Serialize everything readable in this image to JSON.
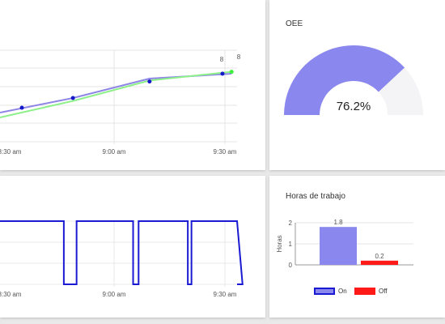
{
  "line_card": {
    "x_ticks": [
      "8:30 am",
      "9:00 am",
      "9:30 am"
    ],
    "point_labels": [
      "8",
      "8"
    ],
    "colors": {
      "series_a": "#8e86e6",
      "series_b": "#8ef08a",
      "point": "#1418c8"
    }
  },
  "oee_card": {
    "title": "OEE",
    "value_text": "76.2%",
    "value": 76.2,
    "colors": {
      "fill": "#8a87ee",
      "track": "#f4f4f6"
    }
  },
  "state_card": {
    "x_ticks": [
      "8:30 am",
      "9:00 am",
      "9:30 am"
    ],
    "color": "#1a1ad2"
  },
  "hours_card": {
    "title": "Horas de trabajo",
    "y_label": "Horas",
    "y_ticks": [
      "0",
      "1",
      "2"
    ],
    "legend_on": "On",
    "legend_off": "Off"
  },
  "chart_data": [
    {
      "type": "line",
      "x_ticks": [
        "8:30 am",
        "9:00 am",
        "9:30 am"
      ],
      "series": [
        {
          "color": "#8e86e6",
          "x": [
            8.25,
            8.65,
            9.07,
            9.52
          ],
          "y": [
            7.6,
            7.75,
            7.95,
            8.0
          ]
        },
        {
          "color": "#8ef08a",
          "x": [
            8.25,
            8.65,
            9.07,
            9.52
          ],
          "y": [
            7.55,
            7.72,
            7.93,
            8.02
          ]
        }
      ],
      "points": [
        {
          "x": 8.37,
          "y": 7.65
        },
        {
          "x": 8.65,
          "y": 7.75
        },
        {
          "x": 9.07,
          "y": 7.92
        },
        {
          "x": 9.47,
          "y": 8.0
        }
      ],
      "point_labels": [
        "8",
        "8"
      ]
    },
    {
      "type": "line",
      "x_ticks": [
        "8:30 am",
        "9:00 am",
        "9:30 am"
      ],
      "steps": [
        {
          "x0": 8.25,
          "x1": 8.6,
          "state": 1
        },
        {
          "x0": 8.6,
          "x1": 8.67,
          "state": 0
        },
        {
          "x0": 8.67,
          "x1": 8.98,
          "state": 1
        },
        {
          "x0": 8.98,
          "x1": 9.01,
          "state": 0
        },
        {
          "x0": 9.01,
          "x1": 9.28,
          "state": 1
        },
        {
          "x0": 9.28,
          "x1": 9.3,
          "state": 0
        },
        {
          "x0": 9.3,
          "x1": 9.58,
          "state": 1
        },
        {
          "x0": 9.58,
          "x1": 9.6,
          "state": 0
        }
      ]
    },
    {
      "type": "bar",
      "title": "Horas de trabajo",
      "ylabel": "Horas",
      "ylim": [
        0,
        2
      ],
      "categories": [
        "On",
        "Off"
      ],
      "values": [
        1.8,
        0.2
      ],
      "data_labels": [
        "1.8",
        "0.2"
      ],
      "colors": [
        "#8a87ee",
        "#ff1a1a"
      ],
      "legend": "bottom"
    },
    {
      "type": "pie",
      "title": "OEE",
      "value": 76.2,
      "value_text": "76.2%"
    }
  ]
}
